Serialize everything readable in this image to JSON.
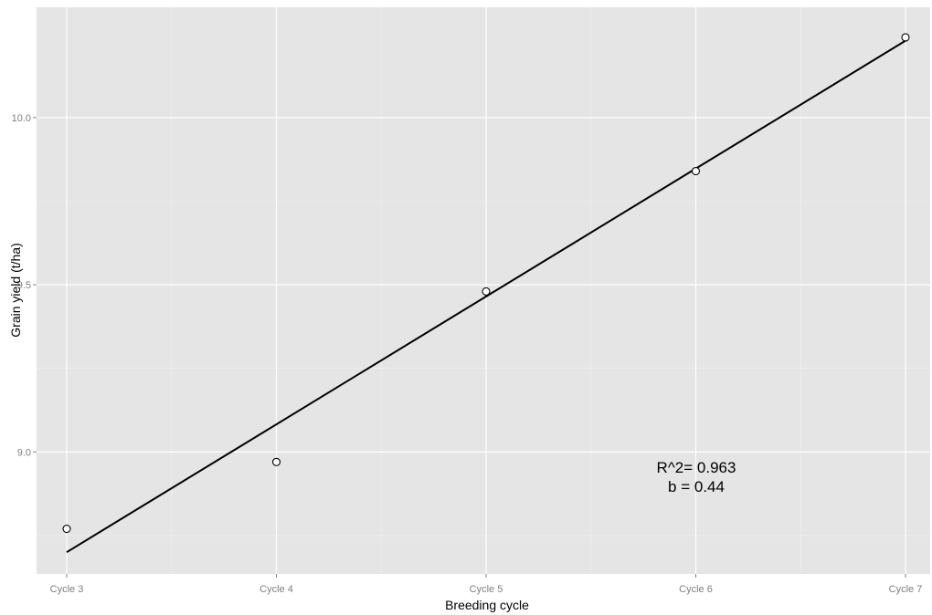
{
  "chart_data": {
    "type": "scatter",
    "xlabel": "Breeding cycle",
    "ylabel": "Grain yield (t/ha)",
    "categories": [
      "Cycle 3",
      "Cycle 4",
      "Cycle 5",
      "Cycle 6",
      "Cycle 7"
    ],
    "y_ticks": [
      9.0,
      9.5,
      10.0
    ],
    "y_tick_labels": [
      "9.0",
      "9.5",
      "10.0"
    ],
    "ylim": [
      8.635,
      10.33
    ],
    "grid": true,
    "series": [
      {
        "values": [
          8.77,
          8.97,
          9.48,
          9.84,
          10.24
        ]
      }
    ],
    "fit_line": {
      "start": 8.7,
      "end": 10.23
    },
    "annotations": [
      "R^2= 0.963",
      "b = 0.44"
    ],
    "colors": {
      "panel_background": "#e5e5e5",
      "grid": "#ffffff",
      "points": "#000000",
      "line": "#000000",
      "tick_text": "#7f7f7f"
    }
  }
}
